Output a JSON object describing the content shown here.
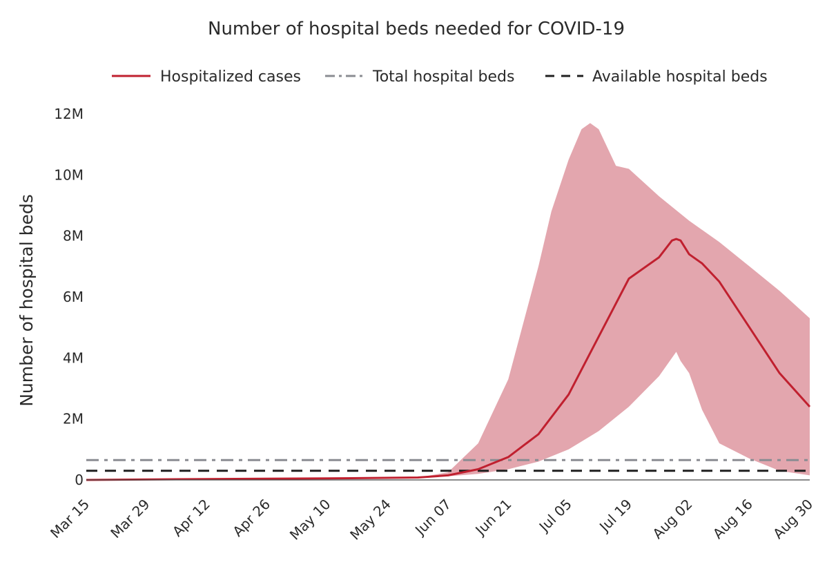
{
  "chart_data": {
    "type": "line",
    "title": "Number of hospital beds needed for COVID-19",
    "xlabel": "",
    "ylabel": "Number of hospital beds",
    "x_start": "Mar 15",
    "x_end": "Aug 30",
    "x_tick_labels": [
      "Mar 15",
      "Mar 29",
      "Apr 12",
      "Apr 26",
      "May 10",
      "May 24",
      "Jun 07",
      "Jun 21",
      "Jul 05",
      "Jul 19",
      "Aug 02",
      "Aug 16",
      "Aug 30"
    ],
    "y_tick_values": [
      0,
      2000000,
      4000000,
      6000000,
      8000000,
      10000000,
      12000000
    ],
    "y_tick_labels": [
      "0",
      "2M",
      "4M",
      "6M",
      "8M",
      "10M",
      "12M"
    ],
    "ylim": [
      0,
      12000000
    ],
    "grid": false,
    "legend_position": "top",
    "series": [
      {
        "name": "Hospitalized cases",
        "style": "solid",
        "color": "#c0202f",
        "x": [
          "2020-03-15",
          "2020-04-12",
          "2020-05-10",
          "2020-05-31",
          "2020-06-07",
          "2020-06-14",
          "2020-06-21",
          "2020-06-28",
          "2020-07-05",
          "2020-07-12",
          "2020-07-19",
          "2020-07-26",
          "2020-07-29",
          "2020-07-30",
          "2020-07-31",
          "2020-08-02",
          "2020-08-05",
          "2020-08-09",
          "2020-08-16",
          "2020-08-23",
          "2020-08-30"
        ],
        "values": [
          0,
          30000,
          50000,
          80000,
          150000,
          350000,
          750000,
          1500000,
          2800000,
          4700000,
          6600000,
          7300000,
          7850000,
          7900000,
          7850000,
          7400000,
          7100000,
          6500000,
          5000000,
          3500000,
          2400000
        ]
      },
      {
        "name": "Total hospital beds",
        "style": "dashdot",
        "color": "#8a8c92",
        "values": [
          650000
        ]
      },
      {
        "name": "Available hospital beds",
        "style": "dash",
        "color": "#1f1f1f",
        "values": [
          300000
        ]
      }
    ],
    "uncertainty_band": {
      "color": "#e3a6ae",
      "x": [
        "2020-05-31",
        "2020-06-07",
        "2020-06-14",
        "2020-06-21",
        "2020-06-28",
        "2020-07-01",
        "2020-07-05",
        "2020-07-08",
        "2020-07-10",
        "2020-07-12",
        "2020-07-16",
        "2020-07-19",
        "2020-07-26",
        "2020-08-02",
        "2020-08-09",
        "2020-08-16",
        "2020-08-23",
        "2020-08-30"
      ],
      "upper": [
        80000,
        250000,
        1200000,
        3300000,
        7000000,
        8800000,
        10500000,
        11500000,
        11700000,
        11500000,
        10300000,
        10200000,
        9300000,
        8500000,
        7800000,
        7000000,
        6200000,
        5300000
      ],
      "x_lower": [
        "2020-05-31",
        "2020-06-07",
        "2020-06-14",
        "2020-06-21",
        "2020-06-28",
        "2020-07-05",
        "2020-07-12",
        "2020-07-19",
        "2020-07-26",
        "2020-07-30",
        "2020-07-31",
        "2020-08-02",
        "2020-08-05",
        "2020-08-09",
        "2020-08-16",
        "2020-08-23",
        "2020-08-30"
      ],
      "lower": [
        80000,
        120000,
        200000,
        350000,
        600000,
        1000000,
        1600000,
        2400000,
        3400000,
        4200000,
        3900000,
        3500000,
        2300000,
        1200000,
        700000,
        300000,
        150000
      ]
    }
  }
}
